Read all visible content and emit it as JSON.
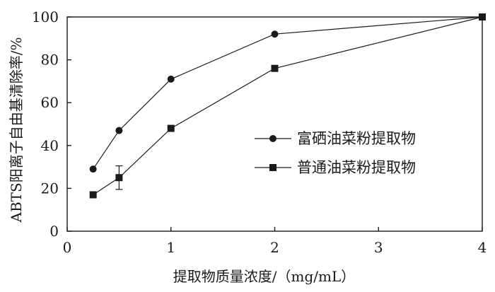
{
  "chart_data": {
    "type": "line",
    "title": "",
    "xlabel": "提取物质量浓度/（mg/mL）",
    "ylabel": "ABTS阳离子自由基清除率/%",
    "x_tick_labels": [
      "0",
      "1",
      "2",
      "3",
      "4"
    ],
    "y_tick_labels": [
      "0",
      "20",
      "40",
      "60",
      "80",
      "100"
    ],
    "xlim": [
      0,
      4
    ],
    "ylim": [
      0,
      100
    ],
    "grid": false,
    "legend_position": "center-right",
    "series": [
      {
        "name": "富硒油菜粉提取物",
        "marker": "circle",
        "color": "#1a1a1a",
        "x": [
          0.25,
          0.5,
          1,
          2,
          4
        ],
        "y": [
          29,
          47,
          71,
          92,
          100
        ]
      },
      {
        "name": "普通油菜粉提取物",
        "marker": "square",
        "color": "#1a1a1a",
        "x": [
          0.25,
          0.5,
          1,
          2,
          4
        ],
        "y": [
          17,
          25,
          48,
          76,
          100
        ],
        "error_bars": [
          {
            "x": 0.5,
            "low": 19.5,
            "high": 30.5
          }
        ]
      }
    ]
  }
}
